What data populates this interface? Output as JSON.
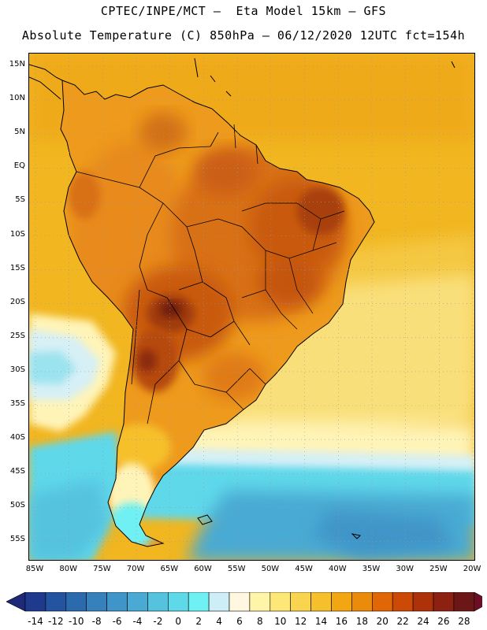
{
  "title": {
    "line1": "CPTEC/INPE/MCT –  Eta Model 15km – GFS",
    "line2": "Absolute Temperature (C) 850hPa – 06/12/2020 12UTC fct=154h"
  },
  "lat_labels": [
    "15N",
    "10N",
    "5N",
    "EQ",
    "5S",
    "10S",
    "15S",
    "20S",
    "25S",
    "30S",
    "35S",
    "40S",
    "45S",
    "50S",
    "55S"
  ],
  "lon_labels": [
    "85W",
    "80W",
    "75W",
    "70W",
    "65W",
    "60W",
    "55W",
    "50W",
    "45W",
    "40W",
    "35W",
    "30W",
    "25W",
    "20W"
  ],
  "colorbar": {
    "labels": [
      "-14",
      "-12",
      "-10",
      "-8",
      "-6",
      "-4",
      "-2",
      "0",
      "2",
      "4",
      "6",
      "8",
      "10",
      "12",
      "14",
      "16",
      "18",
      "20",
      "22",
      "24",
      "26",
      "28"
    ],
    "colors": [
      "#1f3a8c",
      "#2454a0",
      "#2c6aae",
      "#3680bc",
      "#3f95c8",
      "#4aaad3",
      "#55c2de",
      "#5fd8e8",
      "#6ff0f2",
      "#cdeef6",
      "#fff7e0",
      "#fff4a8",
      "#fde776",
      "#f9d44e",
      "#f6c02c",
      "#f2a712",
      "#eb8b0b",
      "#e06606",
      "#cc4a06",
      "#ad320a",
      "#8c2112",
      "#6b1718"
    ],
    "low_color": "#1e2a78",
    "high_color": "#6b0f24"
  },
  "map_colors": {
    "ocean_warm": "#f1b620",
    "ocean_mid": "#f5c842",
    "ocean_pale": "#f9df7a",
    "ocean_cream": "#fff4b8",
    "ocean_cool": "#d6f0f6",
    "ocean_cyan": "#5ed8ea",
    "ocean_blue": "#4aaad3",
    "land_warm": "#e88a1a",
    "land_hot": "#c95a10",
    "land_hotter": "#9f3a0e",
    "land_hottest": "#6e1c10"
  }
}
